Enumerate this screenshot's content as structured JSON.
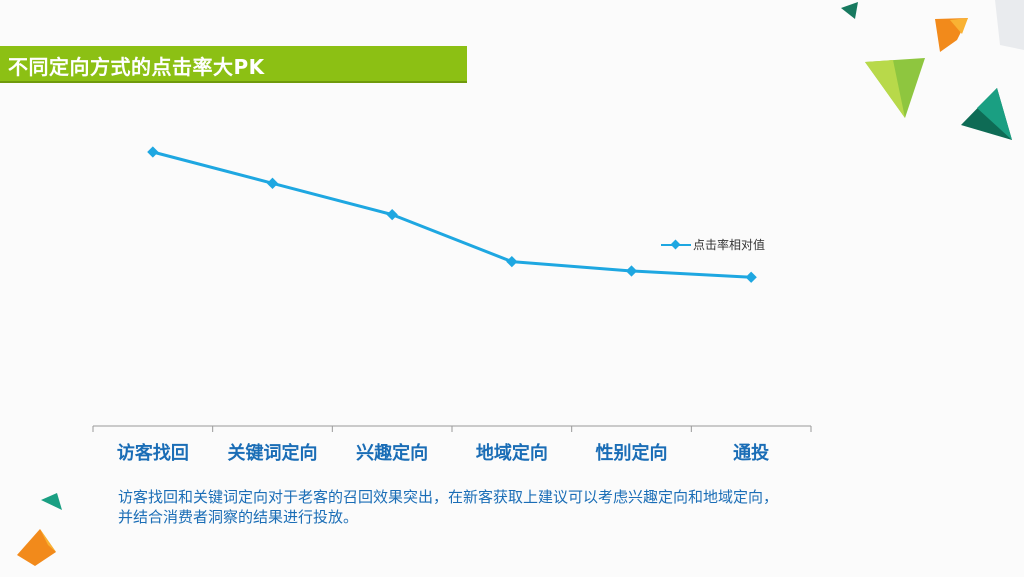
{
  "slide": {
    "title": "不同定向方式的点击率大PK",
    "note": "访客找回和关键词定向对于老客的召回效果突出，在新客获取上建议可以考虑兴趣定向和地域定向，并结合消费者洞察的结果进行投放。"
  },
  "colors": {
    "title_bar": "#8cc014",
    "series_line": "#1ea7e1",
    "category_text": "#1a6db6"
  },
  "chart_data": {
    "type": "line",
    "categories": [
      "访客找回",
      "关键词定向",
      "兴趣定向",
      "地域定向",
      "性别定向",
      "通投"
    ],
    "series": [
      {
        "name": "点击率相对值",
        "values": [
          100,
          80,
          60,
          30,
          24,
          20
        ]
      }
    ],
    "ylim": [
      -75,
      100
    ],
    "grid": false,
    "legend_position": "right"
  }
}
